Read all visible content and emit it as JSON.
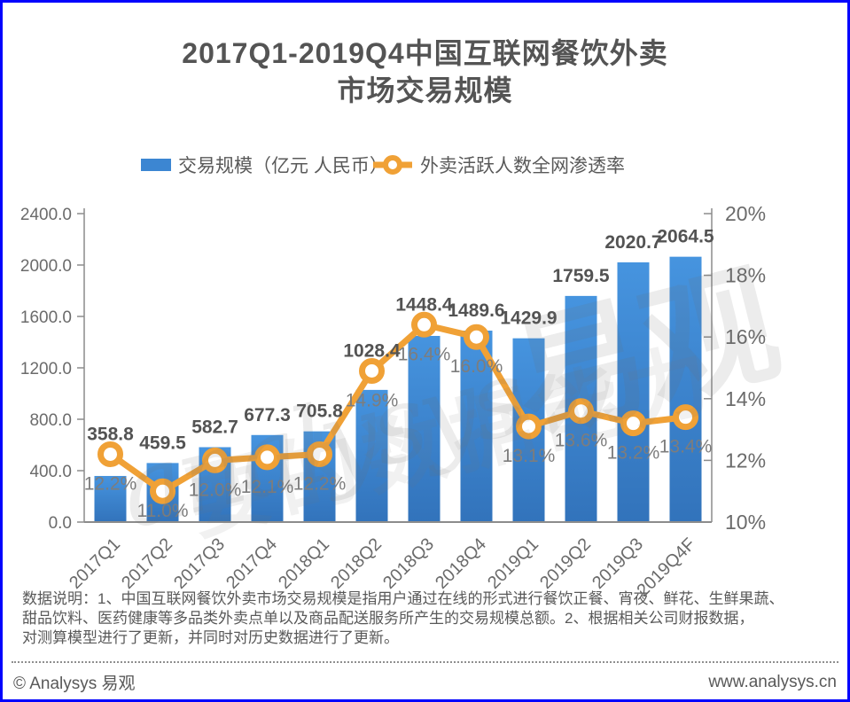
{
  "frame": {
    "border_color": "#0303fd",
    "background": "#ffffff"
  },
  "title": {
    "line1": "2017Q1-2019Q4中国互联网餐饮外卖",
    "line2": "市场交易规模"
  },
  "legend": {
    "bar": {
      "label": "交易规模（亿元 人民币）",
      "swatch_color": "#3c86d2"
    },
    "line": {
      "label": "外卖活跃人数全网渗透率",
      "color": "#f0a136"
    }
  },
  "colors": {
    "bar_gradient_top": "#4694df",
    "bar_gradient_bottom": "#3273bb",
    "line_orange": "#f0a136",
    "marker_fill": "#ffffff",
    "axis_gray": "#8c8c8c",
    "value_label": "#535353",
    "pct_label": "#7d7d7d",
    "title_gray": "#545454"
  },
  "chart_data": {
    "type": "bar+line combo",
    "title": "2017Q1-2019Q4中国互联网餐饮外卖市场交易规模",
    "legend_position": "top",
    "grid": "off",
    "categories": [
      "2017Q1",
      "2017Q2",
      "2017Q3",
      "2017Q4",
      "2018Q1",
      "2018Q2",
      "2018Q3",
      "2018Q4",
      "2019Q1",
      "2019Q2",
      "2019Q3",
      "2019Q4F"
    ],
    "series": [
      {
        "name": "交易规模（亿元 人民币）",
        "type": "bar",
        "axis": "left",
        "values": [
          358.8,
          459.5,
          582.7,
          677.3,
          705.8,
          1028.4,
          1448.4,
          1489.6,
          1429.9,
          1759.5,
          2020.7,
          2064.5
        ],
        "labels": [
          "358.8",
          "459.5",
          "582.7",
          "677.3",
          "705.8",
          "1028.4",
          "1448.4",
          "1489.6",
          "1429.9",
          "1759.5",
          "2020.7",
          "2064.5"
        ]
      },
      {
        "name": "外卖活跃人数全网渗透率",
        "type": "line",
        "axis": "right",
        "values": [
          12.2,
          11.0,
          12.0,
          12.1,
          12.2,
          14.9,
          16.4,
          16.0,
          13.1,
          13.6,
          13.2,
          13.4
        ],
        "labels": [
          "12.2%",
          "11.0%",
          "12.0%",
          "12.1%",
          "12.2%",
          "14.9%",
          "16.4%",
          "16.0%",
          "13.1%",
          "13.6%",
          "13.2%",
          "13.4%"
        ]
      }
    ],
    "left_axis": {
      "min": 0,
      "max": 2400,
      "tick_labels": [
        "2400.0",
        "2000.0",
        "1600.0",
        "1200.0",
        "800.0",
        "400.0",
        "0.0"
      ]
    },
    "right_axis": {
      "min": 10,
      "max": 20,
      "tick_labels": [
        "20%",
        "18%",
        "16%",
        "14%",
        "12%",
        "10%"
      ]
    }
  },
  "watermark": {
    "latin": "analysys",
    "cn": "易观",
    "slogan": "要的数据能力"
  },
  "footnote": {
    "lines": [
      "数据说明：1、中国互联网餐饮外卖市场交易规模是指用户通过在线的形式进行餐饮正餐、宵夜、鲜花、生鲜果蔬、",
      "甜品饮料、医药健康等多品类外卖点单以及商品配送服务所产生的交易规模总额。2、根据相关公司财报数据，",
      "对测算模型进行了更新，并同时对历史数据进行了更新。"
    ]
  },
  "footer": {
    "copyright": "© Analysys 易观",
    "website": "www.analysys.cn"
  }
}
